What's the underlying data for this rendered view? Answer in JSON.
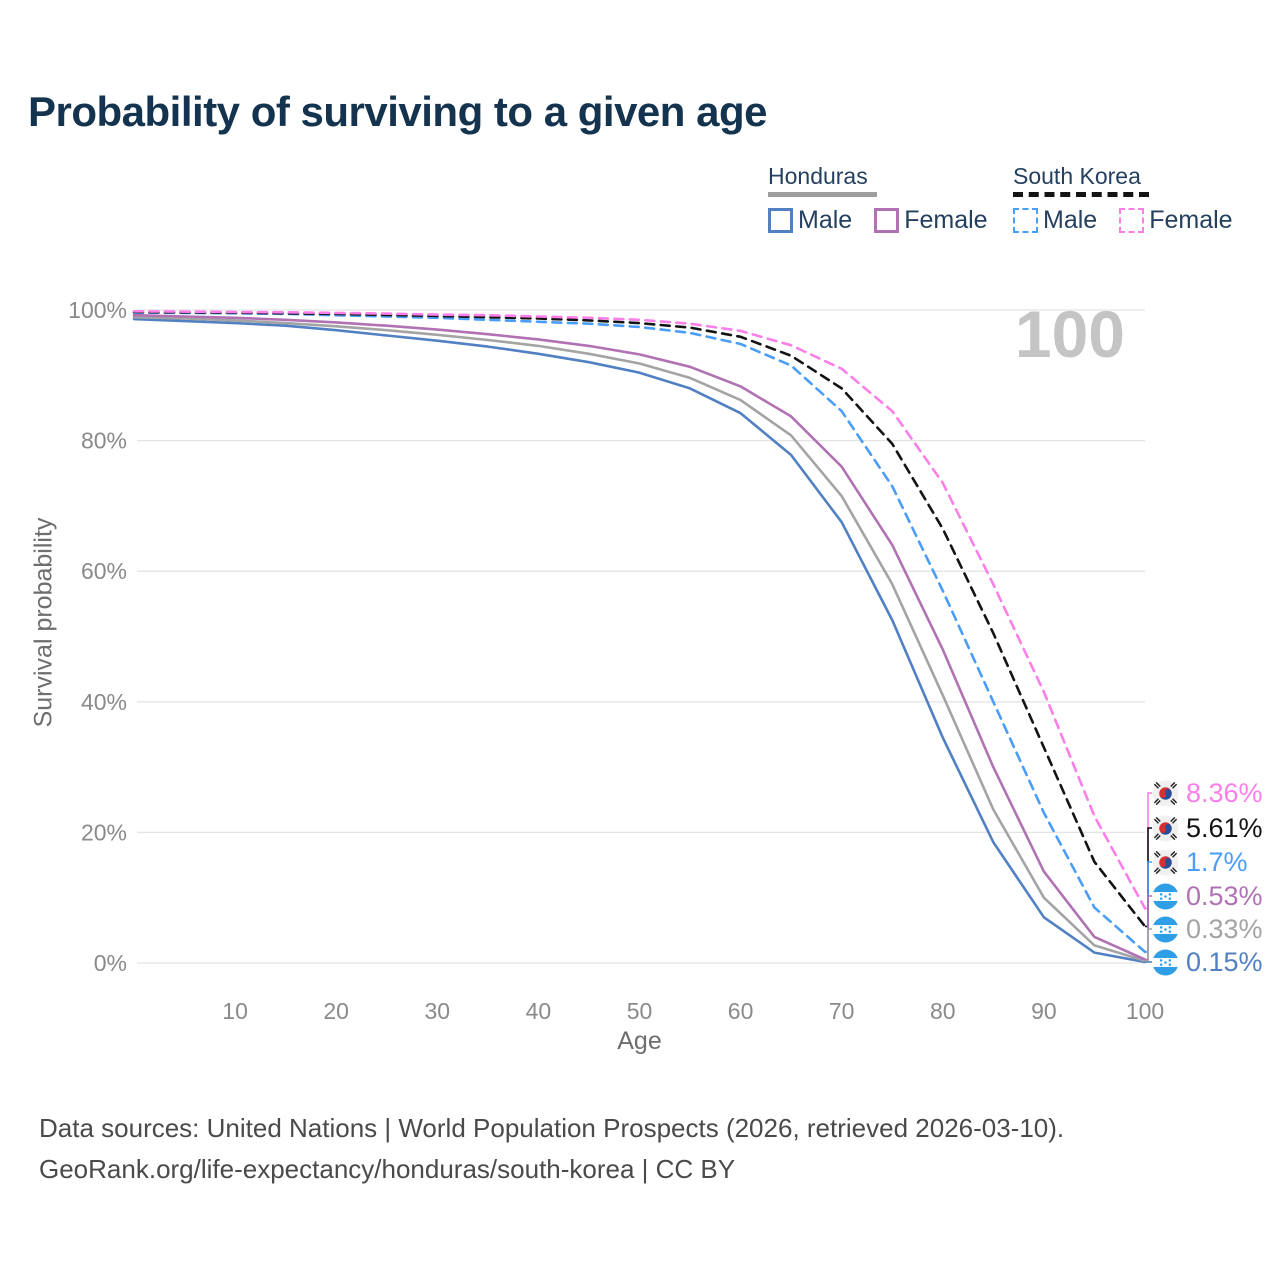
{
  "title": "Probability of surviving to a given age",
  "watermark": "100",
  "legend": {
    "groups": [
      {
        "title": "Honduras",
        "line_style": "solid",
        "underline_color": "#9e9e9e",
        "items": [
          {
            "label": "Male",
            "color": "#5181c3"
          },
          {
            "label": "Female",
            "color": "#b172b4"
          }
        ]
      },
      {
        "title": "South Korea",
        "line_style": "dashed",
        "underline_color": "#141414",
        "items": [
          {
            "label": "Male",
            "color": "#4a9df8"
          },
          {
            "label": "Female",
            "color": "#fc7fe9"
          }
        ]
      }
    ]
  },
  "chart_data": {
    "type": "line",
    "x_label": "Age",
    "y_label": "Survival probability",
    "x_range": [
      0,
      100
    ],
    "ylim": [
      0,
      100
    ],
    "x_step": 5,
    "grid": "horizontal-only",
    "x_ticks": [
      10,
      20,
      30,
      40,
      50,
      60,
      70,
      80,
      90,
      100
    ],
    "y_ticks": [
      {
        "value": 0,
        "label": "0%"
      },
      {
        "value": 20,
        "label": "20%"
      },
      {
        "value": 40,
        "label": "40%"
      },
      {
        "value": 60,
        "label": "60%"
      },
      {
        "value": 80,
        "label": "80%"
      },
      {
        "value": 100,
        "label": "100%"
      }
    ],
    "series": [
      {
        "name": "Honduras Male",
        "country": "Honduras",
        "sex": "male",
        "color": "#5181c3",
        "dash": false,
        "values": [
          98.6,
          98.3,
          98.0,
          97.6,
          96.9,
          96.1,
          95.3,
          94.4,
          93.3,
          92.0,
          90.4,
          88.0,
          84.2,
          77.8,
          67.5,
          52.5,
          34.5,
          18.5,
          7.0,
          1.6,
          0.15
        ]
      },
      {
        "name": "Honduras Both sexes",
        "country": "Honduras",
        "sex": "both",
        "color": "#a4a4a4",
        "dash": false,
        "values": [
          98.9,
          98.7,
          98.4,
          98.0,
          97.5,
          96.9,
          96.2,
          95.4,
          94.5,
          93.3,
          91.8,
          89.6,
          86.2,
          80.8,
          71.5,
          58.0,
          41.0,
          23.5,
          10.0,
          2.7,
          0.33
        ]
      },
      {
        "name": "Honduras Female",
        "country": "Honduras",
        "sex": "female",
        "color": "#b172b4",
        "dash": false,
        "values": [
          99.2,
          99.0,
          98.8,
          98.5,
          98.1,
          97.6,
          97.0,
          96.3,
          95.5,
          94.5,
          93.2,
          91.3,
          88.3,
          83.7,
          76.0,
          64.0,
          48.0,
          30.0,
          14.0,
          4.0,
          0.53
        ]
      },
      {
        "name": "South Korea Male",
        "country": "South Korea",
        "sex": "male",
        "color": "#4a9df8",
        "dash": true,
        "values": [
          99.6,
          99.55,
          99.5,
          99.4,
          99.2,
          99.0,
          98.8,
          98.5,
          98.2,
          97.9,
          97.4,
          96.5,
          94.8,
          91.5,
          84.5,
          73.0,
          57.0,
          40.0,
          23.0,
          8.5,
          1.7
        ]
      },
      {
        "name": "South Korea Both sexes",
        "country": "South Korea",
        "sex": "both",
        "color": "#141414",
        "dash": true,
        "values": [
          99.7,
          99.65,
          99.6,
          99.5,
          99.4,
          99.25,
          99.1,
          98.9,
          98.7,
          98.4,
          98.0,
          97.3,
          95.9,
          93.0,
          88.0,
          79.5,
          66.5,
          50.5,
          33.0,
          15.5,
          5.61
        ]
      },
      {
        "name": "South Korea Female",
        "country": "South Korea",
        "sex": "female",
        "color": "#fc7fe9",
        "dash": true,
        "values": [
          99.8,
          99.75,
          99.7,
          99.65,
          99.55,
          99.45,
          99.3,
          99.2,
          99.0,
          98.8,
          98.5,
          97.9,
          96.8,
          94.6,
          91.0,
          84.5,
          73.5,
          58.0,
          41.5,
          22.5,
          8.36
        ]
      }
    ],
    "end_labels": [
      {
        "text": "8.36%",
        "color": "#fc7fe9",
        "flag": "south-korea",
        "series": 5
      },
      {
        "text": "5.61%",
        "color": "#141414",
        "flag": "south-korea",
        "series": 4
      },
      {
        "text": "1.7%",
        "color": "#4a9df8",
        "flag": "south-korea",
        "series": 3
      },
      {
        "text": "0.53%",
        "color": "#b172b4",
        "flag": "honduras",
        "series": 2
      },
      {
        "text": "0.33%",
        "color": "#a4a4a4",
        "flag": "honduras",
        "series": 1
      },
      {
        "text": "0.15%",
        "color": "#5181c3",
        "flag": "honduras",
        "series": 0
      }
    ]
  },
  "footer": {
    "line1": "Data sources: United Nations | World Population Prospects (2026, retrieved 2026-03-10).",
    "line2": "GeoRank.org/life-expectancy/honduras/south-korea | CC BY"
  }
}
